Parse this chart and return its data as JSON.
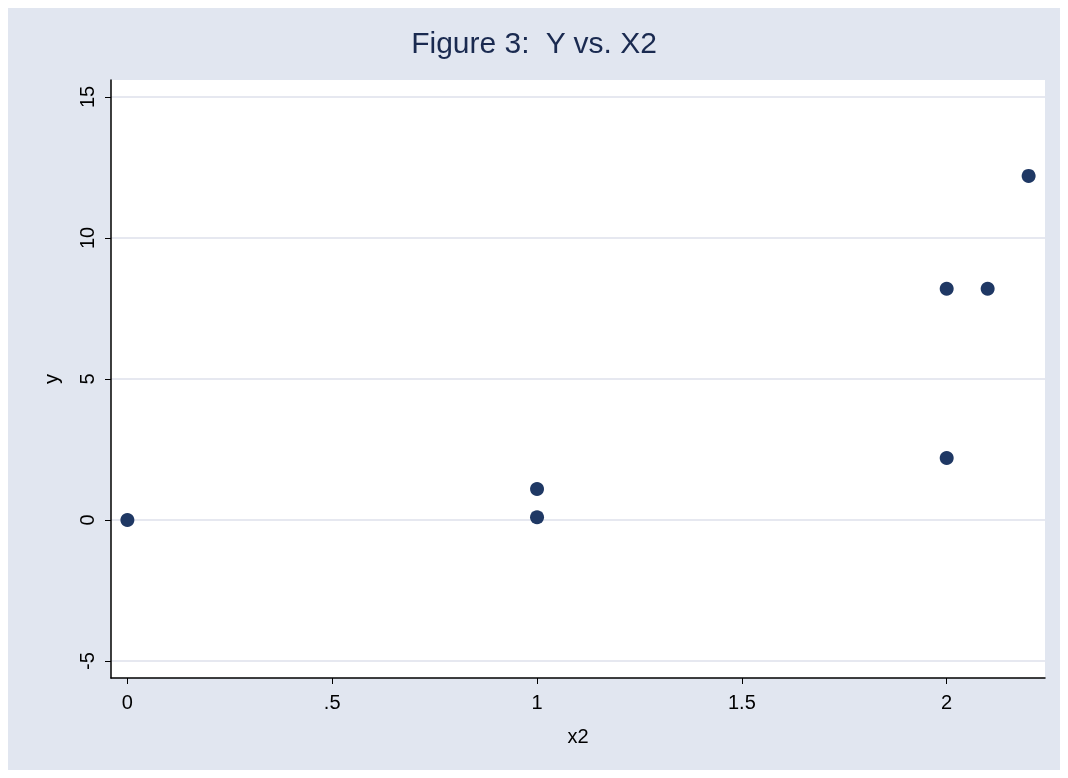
{
  "chart_data": {
    "type": "scatter",
    "title": "Figure 3:  Y vs. X2",
    "xlabel": "x2",
    "ylabel": "y",
    "x": [
      0,
      1,
      1,
      2,
      2.1,
      2,
      2.2
    ],
    "series": [
      {
        "color": "#1f3864",
        "values": [
          0,
          1.1,
          0.1,
          8.2,
          8.2,
          2.2,
          12.2
        ]
      }
    ],
    "xlim": [
      -0.04,
      2.24
    ],
    "xticks": [
      0,
      {
        "value": 0.5,
        "label": ".5"
      },
      1,
      1.5,
      2
    ],
    "ylim": [
      -5.6,
      15.6
    ],
    "yticks": [
      -5,
      0,
      5,
      10,
      15
    ],
    "grid": "y",
    "marker": "circle"
  }
}
